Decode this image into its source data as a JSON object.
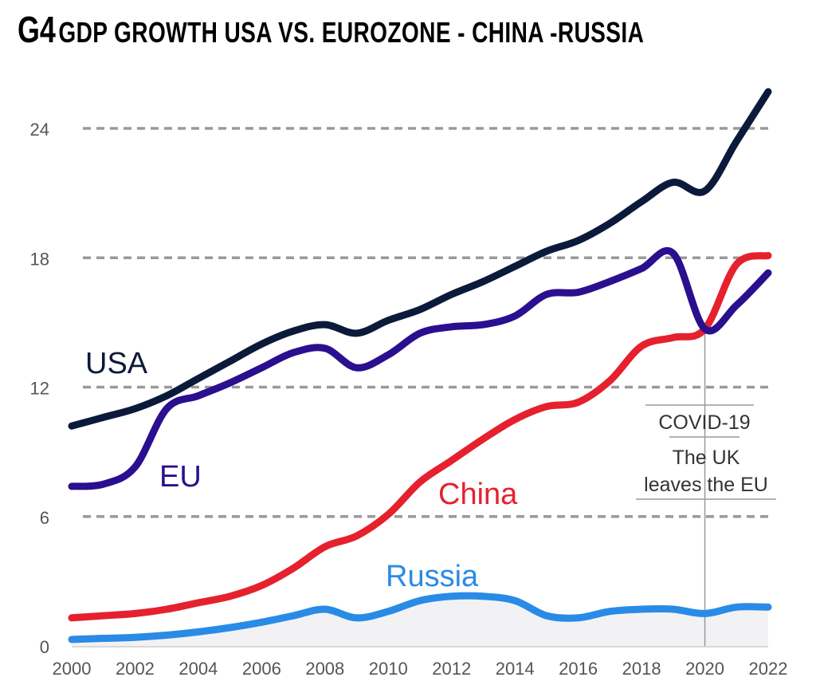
{
  "title": {
    "prefix": "G4",
    "main": "GDP GROWTH USA VS. EUROZONE - CHINA -RUSSIA"
  },
  "colors": {
    "usa": "#0b1a3a",
    "eu": "#2a0f8f",
    "china": "#e5212e",
    "russia": "#2a8be6",
    "grid": "#9a9a9a",
    "tick_text": "#555555",
    "annotation_text": "#333333"
  },
  "chart_data": {
    "type": "line",
    "title": "GDP GROWTH USA VS. EUROZONE - CHINA -RUSSIA",
    "xlabel": "",
    "ylabel": "",
    "xlim": [
      2000,
      2022
    ],
    "ylim": [
      0,
      26
    ],
    "x_ticks": [
      "2000",
      "2002",
      "2004",
      "2006",
      "2008",
      "2010",
      "2012",
      "2014",
      "2016",
      "2018",
      "2020",
      "2022"
    ],
    "y_ticks": [
      "0",
      "6",
      "12",
      "18",
      "24"
    ],
    "grid": "dashed horizontal",
    "x": [
      2000,
      2001,
      2002,
      2003,
      2004,
      2005,
      2006,
      2007,
      2008,
      2009,
      2010,
      2011,
      2012,
      2013,
      2014,
      2015,
      2016,
      2017,
      2018,
      2019,
      2020,
      2021,
      2022
    ],
    "series": [
      {
        "name": "USA",
        "key": "usa",
        "values": [
          10.2,
          10.6,
          11.0,
          11.6,
          12.4,
          13.2,
          14.0,
          14.6,
          14.9,
          14.5,
          15.1,
          15.6,
          16.3,
          16.9,
          17.6,
          18.3,
          18.8,
          19.6,
          20.6,
          21.5,
          21.1,
          23.4,
          25.7
        ]
      },
      {
        "name": "EU",
        "key": "eu",
        "values": [
          7.4,
          7.5,
          8.3,
          11.0,
          11.6,
          12.2,
          12.9,
          13.6,
          13.8,
          12.9,
          13.5,
          14.5,
          14.8,
          14.9,
          15.3,
          16.3,
          16.4,
          16.9,
          17.5,
          18.2,
          14.7,
          15.8,
          17.3
        ]
      },
      {
        "name": "China",
        "key": "china",
        "values": [
          1.3,
          1.4,
          1.5,
          1.7,
          2.0,
          2.3,
          2.8,
          3.6,
          4.6,
          5.1,
          6.1,
          7.6,
          8.6,
          9.6,
          10.5,
          11.1,
          11.3,
          12.3,
          13.9,
          14.3,
          14.7,
          17.7,
          18.1
        ]
      },
      {
        "name": "Russia",
        "key": "russia",
        "values": [
          0.3,
          0.35,
          0.4,
          0.5,
          0.65,
          0.85,
          1.1,
          1.4,
          1.7,
          1.3,
          1.6,
          2.1,
          2.3,
          2.3,
          2.1,
          1.4,
          1.3,
          1.6,
          1.7,
          1.7,
          1.5,
          1.8,
          1.8
        ]
      }
    ],
    "annotations": [
      {
        "x": 2020,
        "text_lines": [
          "COVID-19",
          "The UK",
          "leaves the EU"
        ]
      }
    ]
  }
}
